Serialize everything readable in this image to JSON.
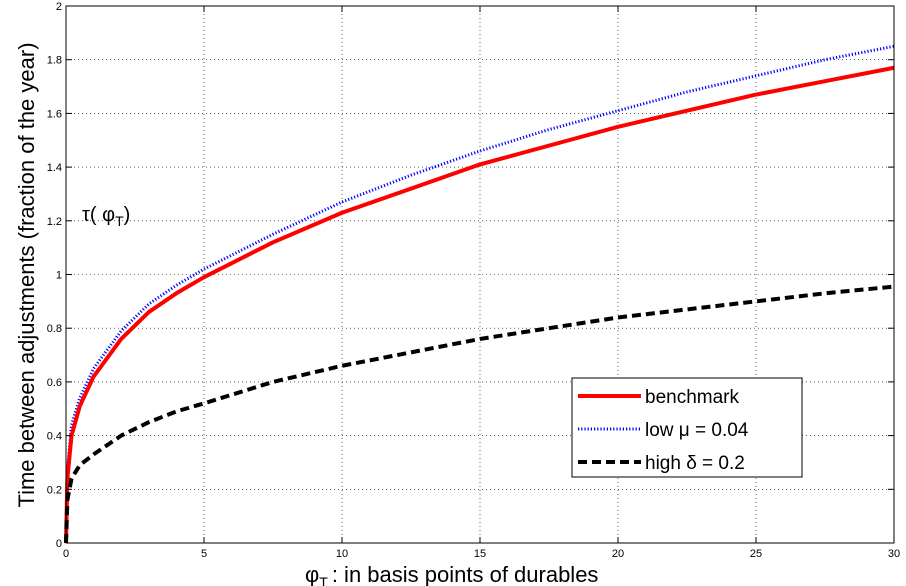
{
  "chart_data": {
    "type": "line",
    "xlabel": "φ",
    "xlabel_sub": "T",
    "xlabel_rest": ": in basis points of durables",
    "ylabel": "Time between adjustments (fraction of the year)",
    "annotation": "τ( φ",
    "annotation_sub": "T",
    "annotation_close": ")",
    "xlim": [
      0,
      30
    ],
    "ylim": [
      0,
      2
    ],
    "xticks": [
      0,
      5,
      10,
      15,
      20,
      25,
      30
    ],
    "yticks": [
      0,
      0.2,
      0.4,
      0.6,
      0.8,
      1,
      1.2,
      1.4,
      1.6,
      1.8,
      2
    ],
    "grid": true,
    "legend_position": "lower-right",
    "series": [
      {
        "name": "benchmark",
        "color": "#ff0000",
        "style": "solid",
        "x": [
          0,
          0.05,
          0.2,
          0.5,
          1,
          2,
          3,
          4,
          5,
          7.5,
          10,
          12.5,
          15,
          17.5,
          20,
          22.5,
          25,
          27.5,
          30
        ],
        "y": [
          0,
          0.24,
          0.4,
          0.51,
          0.62,
          0.76,
          0.86,
          0.93,
          0.99,
          1.12,
          1.23,
          1.32,
          1.41,
          1.48,
          1.55,
          1.61,
          1.67,
          1.72,
          1.77
        ]
      },
      {
        "name": "low μ = 0.04",
        "color": "#0000ff",
        "style": "dotted",
        "x": [
          0,
          0.05,
          0.2,
          0.5,
          1,
          2,
          3,
          4,
          5,
          7.5,
          10,
          12.5,
          15,
          17.5,
          20,
          22.5,
          25,
          27.5,
          30
        ],
        "y": [
          0,
          0.27,
          0.44,
          0.54,
          0.65,
          0.79,
          0.89,
          0.96,
          1.02,
          1.15,
          1.27,
          1.37,
          1.46,
          1.54,
          1.61,
          1.68,
          1.74,
          1.8,
          1.85
        ]
      },
      {
        "name": "high δ = 0.2",
        "color": "#000000",
        "style": "dashed",
        "x": [
          0,
          0.05,
          0.2,
          0.5,
          1,
          2,
          3,
          4,
          5,
          7.5,
          10,
          12.5,
          15,
          17.5,
          20,
          22.5,
          25,
          27.5,
          30
        ],
        "y": [
          0,
          0.16,
          0.24,
          0.29,
          0.33,
          0.4,
          0.45,
          0.49,
          0.52,
          0.6,
          0.66,
          0.71,
          0.76,
          0.8,
          0.84,
          0.87,
          0.9,
          0.93,
          0.955
        ]
      }
    ]
  }
}
